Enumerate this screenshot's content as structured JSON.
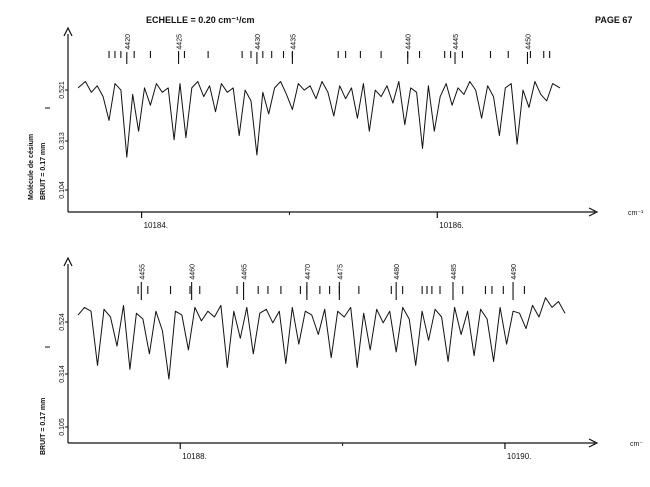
{
  "header": {
    "scale_label": "ECHELLE = 0.20 cm⁻¹/cm",
    "page_label": "PAGE 67"
  },
  "side_labels": {
    "molecule": "Molécule de césium",
    "noise_top": "BRUIT = 0.17 mm",
    "noise_bottom": "BRUIT = 0.17 mm"
  },
  "colors": {
    "ink": "#111111",
    "paper": "#ffffff"
  },
  "chart_data": [
    {
      "type": "line",
      "title": "",
      "xlabel": "",
      "x_unit_label": "cm⁻¹",
      "xlim": [
        10183.57,
        10186.83
      ],
      "x_ticks": [
        10184,
        10186
      ],
      "x_tick_labels": [
        "10184.",
        "10186."
      ],
      "y_axis_label": "I",
      "y_ticks": [
        0.521,
        0.313,
        0.104
      ],
      "y_tick_labels": [
        "0.521",
        "0.313",
        "0.104"
      ],
      "ylim": [
        0.0,
        0.62
      ],
      "line_numbers": [
        4420,
        4425,
        4430,
        4435,
        4440,
        4445,
        4450
      ],
      "line_number_positions": [
        10183.9,
        10184.25,
        10184.78,
        10185.02,
        10185.8,
        10186.12,
        10186.61
      ],
      "marker_positions": [
        10183.78,
        10183.82,
        10183.86,
        10183.95,
        10184.06,
        10184.25,
        10184.29,
        10184.45,
        10184.68,
        10184.74,
        10184.82,
        10184.88,
        10184.96,
        10185.02,
        10185.33,
        10185.38,
        10185.48,
        10185.62,
        10185.8,
        10185.88,
        10186.05,
        10186.09,
        10186.17,
        10186.36,
        10186.48,
        10186.63,
        10186.72,
        10186.76
      ],
      "data": {
        "x": [
          10183.57,
          10183.62,
          10183.66,
          10183.7,
          10183.74,
          10183.78,
          10183.82,
          10183.86,
          10183.9,
          10183.94,
          10183.98,
          10184.02,
          10184.06,
          10184.1,
          10184.14,
          10184.18,
          10184.22,
          10184.26,
          10184.3,
          10184.34,
          10184.38,
          10184.42,
          10184.46,
          10184.5,
          10184.54,
          10184.58,
          10184.62,
          10184.66,
          10184.7,
          10184.74,
          10184.78,
          10184.82,
          10184.86,
          10184.9,
          10184.94,
          10184.98,
          10185.02,
          10185.06,
          10185.1,
          10185.14,
          10185.18,
          10185.22,
          10185.26,
          10185.3,
          10185.34,
          10185.38,
          10185.42,
          10185.46,
          10185.5,
          10185.54,
          10185.58,
          10185.62,
          10185.66,
          10185.7,
          10185.74,
          10185.78,
          10185.82,
          10185.86,
          10185.9,
          10185.94,
          10185.98,
          10186.02,
          10186.06,
          10186.1,
          10186.14,
          10186.18,
          10186.22,
          10186.26,
          10186.3,
          10186.34,
          10186.38,
          10186.42,
          10186.46,
          10186.5,
          10186.54,
          10186.58,
          10186.62,
          10186.66,
          10186.7,
          10186.74,
          10186.78,
          10186.83
        ],
        "y": [
          0.5,
          0.53,
          0.48,
          0.51,
          0.46,
          0.35,
          0.52,
          0.49,
          0.18,
          0.47,
          0.3,
          0.5,
          0.42,
          0.52,
          0.48,
          0.5,
          0.26,
          0.52,
          0.27,
          0.5,
          0.53,
          0.46,
          0.51,
          0.39,
          0.52,
          0.48,
          0.5,
          0.28,
          0.49,
          0.44,
          0.19,
          0.48,
          0.38,
          0.5,
          0.53,
          0.47,
          0.4,
          0.52,
          0.49,
          0.51,
          0.45,
          0.53,
          0.48,
          0.37,
          0.51,
          0.45,
          0.5,
          0.36,
          0.52,
          0.3,
          0.49,
          0.46,
          0.51,
          0.43,
          0.53,
          0.33,
          0.5,
          0.48,
          0.22,
          0.51,
          0.3,
          0.46,
          0.52,
          0.42,
          0.5,
          0.47,
          0.53,
          0.49,
          0.36,
          0.51,
          0.46,
          0.28,
          0.5,
          0.52,
          0.24,
          0.49,
          0.41,
          0.53,
          0.47,
          0.44,
          0.52,
          0.5
        ]
      }
    },
    {
      "type": "line",
      "title": "",
      "xlabel": "",
      "x_unit_label": "cm⁻",
      "xlim": [
        10187.37,
        10190.37
      ],
      "x_ticks": [
        10188,
        10190
      ],
      "x_tick_labels": [
        "10188.",
        "10190."
      ],
      "y_axis_label": "I",
      "y_ticks": [
        0.524,
        0.314,
        0.105
      ],
      "y_tick_labels": [
        "0.524",
        "0.314",
        "0.105"
      ],
      "ylim": [
        0.0,
        0.62
      ],
      "line_numbers": [
        4455,
        4460,
        4465,
        4470,
        4475,
        4480,
        4485,
        4490
      ],
      "line_number_positions": [
        10187.76,
        10188.07,
        10188.39,
        10188.78,
        10188.98,
        10189.33,
        10189.68,
        10190.05
      ],
      "marker_positions": [
        10187.74,
        10187.8,
        10187.94,
        10188.06,
        10188.12,
        10188.35,
        10188.48,
        10188.54,
        10188.62,
        10188.74,
        10188.78,
        10188.86,
        10188.92,
        10188.98,
        10189.1,
        10189.3,
        10189.37,
        10189.49,
        10189.52,
        10189.55,
        10189.6,
        10189.74,
        10189.88,
        10189.92,
        10189.99,
        10190.12
      ],
      "data": {
        "x": [
          10187.37,
          10187.41,
          10187.45,
          10187.49,
          10187.53,
          10187.57,
          10187.61,
          10187.65,
          10187.69,
          10187.73,
          10187.77,
          10187.81,
          10187.85,
          10187.89,
          10187.93,
          10187.97,
          10188.01,
          10188.05,
          10188.09,
          10188.13,
          10188.17,
          10188.21,
          10188.25,
          10188.29,
          10188.33,
          10188.37,
          10188.41,
          10188.45,
          10188.49,
          10188.53,
          10188.57,
          10188.61,
          10188.65,
          10188.69,
          10188.73,
          10188.77,
          10188.81,
          10188.85,
          10188.89,
          10188.93,
          10188.97,
          10189.01,
          10189.05,
          10189.09,
          10189.13,
          10189.17,
          10189.21,
          10189.25,
          10189.29,
          10189.33,
          10189.37,
          10189.41,
          10189.45,
          10189.49,
          10189.53,
          10189.57,
          10189.61,
          10189.65,
          10189.69,
          10189.73,
          10189.77,
          10189.81,
          10189.85,
          10189.89,
          10189.93,
          10189.97,
          10190.01,
          10190.05,
          10190.09,
          10190.13,
          10190.17,
          10190.21,
          10190.25,
          10190.29,
          10190.33,
          10190.37
        ],
        "y": [
          0.48,
          0.52,
          0.5,
          0.22,
          0.51,
          0.47,
          0.32,
          0.53,
          0.2,
          0.49,
          0.46,
          0.28,
          0.5,
          0.4,
          0.15,
          0.5,
          0.48,
          0.3,
          0.52,
          0.45,
          0.5,
          0.47,
          0.53,
          0.21,
          0.5,
          0.36,
          0.52,
          0.28,
          0.49,
          0.51,
          0.44,
          0.5,
          0.23,
          0.52,
          0.33,
          0.5,
          0.48,
          0.38,
          0.51,
          0.26,
          0.5,
          0.47,
          0.52,
          0.21,
          0.49,
          0.3,
          0.51,
          0.44,
          0.5,
          0.29,
          0.52,
          0.46,
          0.22,
          0.5,
          0.35,
          0.51,
          0.47,
          0.24,
          0.52,
          0.38,
          0.5,
          0.27,
          0.51,
          0.46,
          0.24,
          0.52,
          0.33,
          0.5,
          0.49,
          0.41,
          0.53,
          0.47,
          0.57,
          0.52,
          0.55,
          0.49
        ]
      }
    }
  ]
}
